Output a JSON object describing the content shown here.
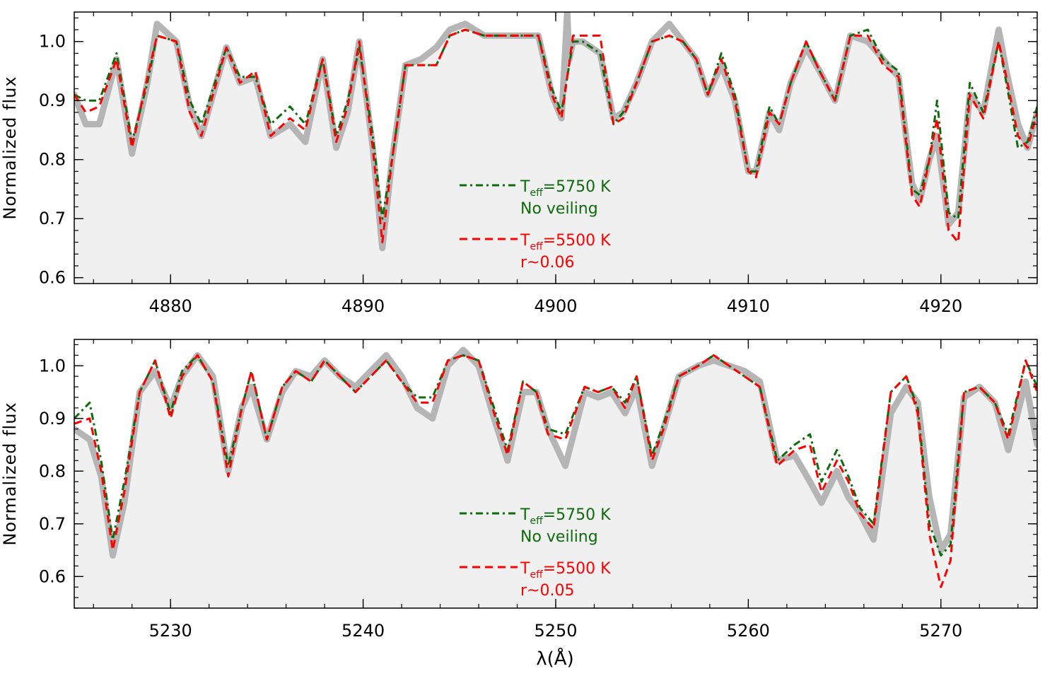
{
  "colors": {
    "observed": "#b5b5b5",
    "observed_fill": "#f0f0f0",
    "model_a": "#0d6b0d",
    "model_b": "#ff0000",
    "axis": "#000000"
  },
  "xlabel_shared": "λ(Å)",
  "chart_data": [
    {
      "type": "line",
      "ylabel": "Normalized flux",
      "xlim": [
        4875,
        4925
      ],
      "ylim": [
        0.59,
        1.05
      ],
      "xticks": [
        4880,
        4890,
        4900,
        4910,
        4920
      ],
      "xtick_labels": [
        "4880",
        "4890",
        "4900",
        "4910",
        "4920"
      ],
      "yticks": [
        0.6,
        0.7,
        0.8,
        0.9,
        1.0
      ],
      "ytick_labels": [
        "0.6",
        "0.7",
        "0.8",
        "0.9",
        "1.0"
      ],
      "legend": {
        "placement": "center",
        "entries": [
          {
            "prefix": "T",
            "sub": "eff",
            "suffix": "=5750 K",
            "line2": "No veiling",
            "color": "#0d6b0d",
            "style": "dashdot"
          },
          {
            "prefix": "T",
            "sub": "eff",
            "suffix": "=5500 K",
            "line2": "r~0.06",
            "color": "#ff0000",
            "style": "dash"
          }
        ]
      },
      "series": [
        {
          "role": "observed",
          "style": "thick-gray-filled",
          "x": [
            4875,
            4875.6,
            4876.3,
            4877.2,
            4878.0,
            4878.8,
            4879.3,
            4880.3,
            4881.0,
            4881.6,
            4882.9,
            4883.6,
            4884.4,
            4885.2,
            4886.2,
            4887.0,
            4887.9,
            4888.6,
            4889.2,
            4889.8,
            4890.5,
            4891.0,
            4891.5,
            4892.2,
            4893.0,
            4893.8,
            4894.5,
            4895.3,
            4896.3,
            4897.2,
            4898.2,
            4899.1,
            4899.8,
            4900.3,
            4900.6,
            4900.7,
            4900.9,
            4901.4,
            4902.3,
            4903.0,
            4903.5,
            4904.2,
            4905.0,
            4905.9,
            4906.6,
            4907.3,
            4907.9,
            4908.6,
            4909.3,
            4910.0,
            4910.4,
            4911.1,
            4911.6,
            4912.2,
            4913.0,
            4913.7,
            4914.5,
            4915.3,
            4916.2,
            4917.0,
            4917.8,
            4918.5,
            4918.9,
            4919.4,
            4919.8,
            4920.4,
            4920.9,
            4921.5,
            4922.2,
            4923.0,
            4923.4,
            4924.0,
            4924.5,
            4925
          ],
          "y": [
            0.91,
            0.86,
            0.86,
            0.97,
            0.81,
            0.93,
            1.03,
            1.0,
            0.89,
            0.84,
            0.99,
            0.93,
            0.94,
            0.84,
            0.86,
            0.83,
            0.97,
            0.82,
            0.88,
            1.0,
            0.82,
            0.65,
            0.8,
            0.96,
            0.97,
            0.99,
            1.02,
            1.03,
            1.01,
            1.01,
            1.01,
            1.01,
            0.91,
            0.87,
            1.05,
            0.97,
            1.0,
            1.0,
            0.98,
            0.87,
            0.88,
            0.93,
            1.0,
            1.03,
            1.0,
            0.97,
            0.91,
            0.96,
            0.9,
            0.78,
            0.78,
            0.88,
            0.85,
            0.93,
            0.99,
            0.95,
            0.9,
            1.01,
            1.0,
            0.97,
            0.94,
            0.76,
            0.73,
            0.8,
            0.84,
            0.69,
            0.71,
            0.91,
            0.88,
            1.02,
            0.95,
            0.86,
            0.82,
            0.88
          ]
        },
        {
          "name": "Teff=5750 K, No veiling",
          "role": "model_a",
          "style": "dashdot",
          "x": [
            4875,
            4875.6,
            4876.3,
            4877.2,
            4878.0,
            4878.8,
            4879.3,
            4880.3,
            4881.0,
            4881.6,
            4882.9,
            4883.6,
            4884.4,
            4885.2,
            4886.2,
            4887.0,
            4887.9,
            4888.6,
            4889.2,
            4889.8,
            4890.5,
            4891.0,
            4891.5,
            4892.2,
            4893.0,
            4893.8,
            4894.5,
            4895.3,
            4896.3,
            4897.2,
            4898.2,
            4899.1,
            4899.8,
            4900.3,
            4900.9,
            4901.4,
            4902.3,
            4903.0,
            4903.5,
            4904.2,
            4905.0,
            4905.9,
            4906.6,
            4907.3,
            4907.9,
            4908.6,
            4909.3,
            4910.0,
            4910.4,
            4911.1,
            4911.6,
            4912.2,
            4913.0,
            4913.7,
            4914.5,
            4915.3,
            4916.2,
            4917.0,
            4917.8,
            4918.5,
            4918.9,
            4919.4,
            4919.8,
            4920.4,
            4920.9,
            4921.5,
            4922.2,
            4923.0,
            4923.4,
            4924.0,
            4924.5,
            4925
          ],
          "y": [
            0.91,
            0.9,
            0.9,
            0.98,
            0.83,
            0.93,
            1.01,
            1.0,
            0.9,
            0.86,
            0.99,
            0.94,
            0.94,
            0.86,
            0.89,
            0.86,
            0.97,
            0.84,
            0.9,
            0.99,
            0.84,
            0.7,
            0.8,
            0.96,
            0.96,
            0.96,
            1.01,
            1.02,
            1.01,
            1.01,
            1.01,
            1.01,
            0.92,
            0.88,
            1.0,
            1.0,
            0.98,
            0.86,
            0.88,
            0.93,
            1.0,
            1.01,
            1.0,
            0.97,
            0.91,
            0.98,
            0.91,
            0.78,
            0.78,
            0.89,
            0.86,
            0.93,
            1.0,
            0.95,
            0.9,
            1.01,
            1.02,
            0.97,
            0.95,
            0.75,
            0.74,
            0.8,
            0.9,
            0.71,
            0.7,
            0.93,
            0.88,
            1.0,
            0.93,
            0.82,
            0.83,
            0.89
          ]
        },
        {
          "name": "Teff=5500 K, r~0.06",
          "role": "model_b",
          "style": "dash",
          "x": [
            4875,
            4875.6,
            4876.3,
            4877.2,
            4878.0,
            4878.8,
            4879.3,
            4880.3,
            4881.0,
            4881.6,
            4882.9,
            4883.6,
            4884.4,
            4885.2,
            4886.2,
            4887.0,
            4887.9,
            4888.6,
            4889.2,
            4889.8,
            4890.5,
            4891.0,
            4891.5,
            4892.2,
            4893.0,
            4893.8,
            4894.5,
            4895.3,
            4896.3,
            4897.2,
            4898.2,
            4899.1,
            4899.8,
            4900.3,
            4900.9,
            4901.4,
            4902.3,
            4903.0,
            4903.5,
            4904.2,
            4905.0,
            4905.9,
            4906.6,
            4907.3,
            4907.9,
            4908.6,
            4909.3,
            4910.0,
            4910.4,
            4911.1,
            4911.6,
            4912.2,
            4913.0,
            4913.7,
            4914.5,
            4915.3,
            4916.2,
            4917.0,
            4917.8,
            4918.5,
            4918.9,
            4919.4,
            4919.8,
            4920.4,
            4920.9,
            4921.5,
            4922.2,
            4923.0,
            4923.4,
            4924.0,
            4924.5,
            4925
          ],
          "y": [
            0.91,
            0.88,
            0.89,
            0.97,
            0.82,
            0.94,
            1.01,
            1.0,
            0.88,
            0.84,
            0.99,
            0.93,
            0.95,
            0.84,
            0.87,
            0.85,
            0.97,
            0.83,
            0.89,
            1.0,
            0.82,
            0.66,
            0.8,
            0.96,
            0.96,
            0.96,
            1.01,
            1.02,
            1.01,
            1.01,
            1.01,
            1.01,
            0.91,
            0.87,
            1.01,
            1.01,
            1.01,
            0.86,
            0.87,
            0.93,
            1.0,
            1.01,
            1.0,
            0.97,
            0.91,
            0.97,
            0.9,
            0.78,
            0.77,
            0.88,
            0.86,
            0.93,
            1.0,
            0.95,
            0.9,
            1.01,
            1.01,
            0.96,
            0.94,
            0.74,
            0.72,
            0.8,
            0.87,
            0.68,
            0.66,
            0.91,
            0.87,
            1.0,
            0.94,
            0.84,
            0.82,
            0.88
          ]
        }
      ]
    },
    {
      "type": "line",
      "ylabel": "Normalized flux",
      "xlim": [
        5225,
        5275
      ],
      "ylim": [
        0.54,
        1.05
      ],
      "xticks": [
        5230,
        5240,
        5250,
        5260,
        5270
      ],
      "xtick_labels": [
        "5230",
        "5240",
        "5250",
        "5260",
        "5270"
      ],
      "yticks": [
        0.6,
        0.7,
        0.8,
        0.9,
        1.0
      ],
      "ytick_labels": [
        "0.6",
        "0.7",
        "0.8",
        "0.9",
        "1.0"
      ],
      "legend": {
        "placement": "center",
        "entries": [
          {
            "prefix": "T",
            "sub": "eff",
            "suffix": "=5750 K",
            "line2": "No veiling",
            "color": "#0d6b0d",
            "style": "dashdot"
          },
          {
            "prefix": "T",
            "sub": "eff",
            "suffix": "=5500 K",
            "line2": "r~0.05",
            "color": "#ff0000",
            "style": "dash"
          }
        ]
      },
      "series": [
        {
          "role": "observed",
          "style": "thick-gray-filled",
          "x": [
            5225,
            5225.8,
            5226.4,
            5227.0,
            5227.6,
            5228.4,
            5229.2,
            5230.0,
            5230.6,
            5231.4,
            5232.2,
            5233.0,
            5233.7,
            5234.2,
            5235.0,
            5235.8,
            5236.5,
            5237.3,
            5238.0,
            5238.8,
            5239.6,
            5240.4,
            5241.2,
            5242.0,
            5242.8,
            5243.6,
            5244.4,
            5245.2,
            5246.0,
            5246.8,
            5247.5,
            5248.3,
            5249.0,
            5249.6,
            5250.5,
            5251.5,
            5252.2,
            5252.9,
            5253.6,
            5254.2,
            5255.0,
            5255.6,
            5256.4,
            5257.4,
            5258.2,
            5259.0,
            5259.8,
            5260.6,
            5261.5,
            5262.4,
            5263.2,
            5263.8,
            5264.6,
            5265.2,
            5265.8,
            5266.5,
            5267.4,
            5268.2,
            5268.8,
            5269.4,
            5270.0,
            5270.5,
            5271.2,
            5272.0,
            5272.8,
            5273.5,
            5274.4,
            5275
          ],
          "y": [
            0.88,
            0.86,
            0.79,
            0.64,
            0.74,
            0.95,
            0.99,
            0.92,
            0.98,
            1.02,
            0.98,
            0.8,
            0.92,
            0.96,
            0.86,
            0.95,
            0.99,
            0.98,
            1.01,
            0.98,
            0.96,
            0.99,
            1.02,
            0.98,
            0.92,
            0.9,
            1.0,
            1.03,
            1.0,
            0.9,
            0.82,
            0.95,
            0.95,
            0.88,
            0.81,
            0.95,
            0.94,
            0.95,
            0.91,
            0.96,
            0.81,
            0.88,
            0.98,
            1.0,
            1.01,
            1.0,
            0.99,
            0.97,
            0.82,
            0.83,
            0.78,
            0.74,
            0.8,
            0.75,
            0.72,
            0.67,
            0.91,
            0.96,
            0.93,
            0.75,
            0.65,
            0.68,
            0.94,
            0.96,
            0.93,
            0.84,
            0.97,
            0.85
          ]
        },
        {
          "name": "Teff=5750 K, No veiling",
          "role": "model_a",
          "style": "dashdot",
          "x": [
            5225,
            5225.8,
            5226.4,
            5227.0,
            5227.6,
            5228.4,
            5229.2,
            5230.0,
            5230.6,
            5231.4,
            5232.2,
            5233.0,
            5233.7,
            5234.2,
            5235.0,
            5235.8,
            5236.5,
            5237.3,
            5238.0,
            5238.8,
            5239.6,
            5240.4,
            5241.2,
            5242.0,
            5242.8,
            5243.6,
            5244.4,
            5245.2,
            5246.0,
            5246.8,
            5247.5,
            5248.3,
            5249.0,
            5249.6,
            5250.5,
            5251.5,
            5252.2,
            5252.9,
            5253.6,
            5254.2,
            5255.0,
            5255.6,
            5256.4,
            5257.4,
            5258.2,
            5259.0,
            5259.8,
            5260.6,
            5261.5,
            5262.4,
            5263.2,
            5263.8,
            5264.6,
            5265.2,
            5265.8,
            5266.5,
            5267.4,
            5268.2,
            5268.8,
            5269.4,
            5270.0,
            5270.5,
            5271.2,
            5272.0,
            5272.8,
            5273.5,
            5274.4,
            5275
          ],
          "y": [
            0.9,
            0.93,
            0.82,
            0.67,
            0.78,
            0.95,
            1.01,
            0.91,
            0.99,
            1.02,
            0.97,
            0.81,
            0.92,
            0.99,
            0.86,
            0.96,
            0.99,
            0.97,
            1.01,
            0.98,
            0.95,
            0.98,
            1.01,
            0.97,
            0.94,
            0.94,
            1.01,
            1.02,
            1.01,
            0.92,
            0.84,
            0.97,
            0.95,
            0.88,
            0.87,
            0.96,
            0.95,
            0.96,
            0.93,
            0.98,
            0.83,
            0.89,
            0.98,
            1.0,
            1.02,
            1.0,
            0.98,
            0.96,
            0.82,
            0.85,
            0.87,
            0.78,
            0.84,
            0.79,
            0.73,
            0.7,
            0.95,
            0.98,
            0.92,
            0.7,
            0.64,
            0.66,
            0.95,
            0.96,
            0.93,
            0.87,
            1.01,
            0.96
          ]
        },
        {
          "name": "Teff=5500 K, r~0.05",
          "role": "model_b",
          "style": "dash",
          "x": [
            5225,
            5225.8,
            5226.4,
            5227.0,
            5227.6,
            5228.4,
            5229.2,
            5230.0,
            5230.6,
            5231.4,
            5232.2,
            5233.0,
            5233.7,
            5234.2,
            5235.0,
            5235.8,
            5236.5,
            5237.3,
            5238.0,
            5238.8,
            5239.6,
            5240.4,
            5241.2,
            5242.0,
            5242.8,
            5243.6,
            5244.4,
            5245.2,
            5246.0,
            5246.8,
            5247.5,
            5248.3,
            5249.0,
            5249.6,
            5250.5,
            5251.5,
            5252.2,
            5252.9,
            5253.6,
            5254.2,
            5255.0,
            5255.6,
            5256.4,
            5257.4,
            5258.2,
            5259.0,
            5259.8,
            5260.6,
            5261.5,
            5262.4,
            5263.2,
            5263.8,
            5264.6,
            5265.2,
            5265.8,
            5266.5,
            5267.4,
            5268.2,
            5268.8,
            5269.4,
            5270.0,
            5270.5,
            5271.2,
            5272.0,
            5272.8,
            5273.5,
            5274.4,
            5275
          ],
          "y": [
            0.89,
            0.9,
            0.8,
            0.65,
            0.76,
            0.95,
            1.01,
            0.9,
            0.98,
            1.02,
            0.97,
            0.79,
            0.92,
            0.99,
            0.86,
            0.96,
            0.99,
            0.97,
            1.01,
            0.98,
            0.95,
            0.98,
            1.01,
            0.97,
            0.93,
            0.93,
            1.01,
            1.02,
            1.01,
            0.91,
            0.83,
            0.97,
            0.95,
            0.87,
            0.86,
            0.96,
            0.95,
            0.96,
            0.92,
            0.98,
            0.82,
            0.88,
            0.98,
            1.0,
            1.02,
            1.0,
            0.98,
            0.96,
            0.81,
            0.84,
            0.85,
            0.76,
            0.82,
            0.78,
            0.72,
            0.69,
            0.95,
            0.98,
            0.91,
            0.68,
            0.58,
            0.63,
            0.95,
            0.96,
            0.93,
            0.86,
            1.01,
            0.95
          ]
        }
      ]
    }
  ]
}
